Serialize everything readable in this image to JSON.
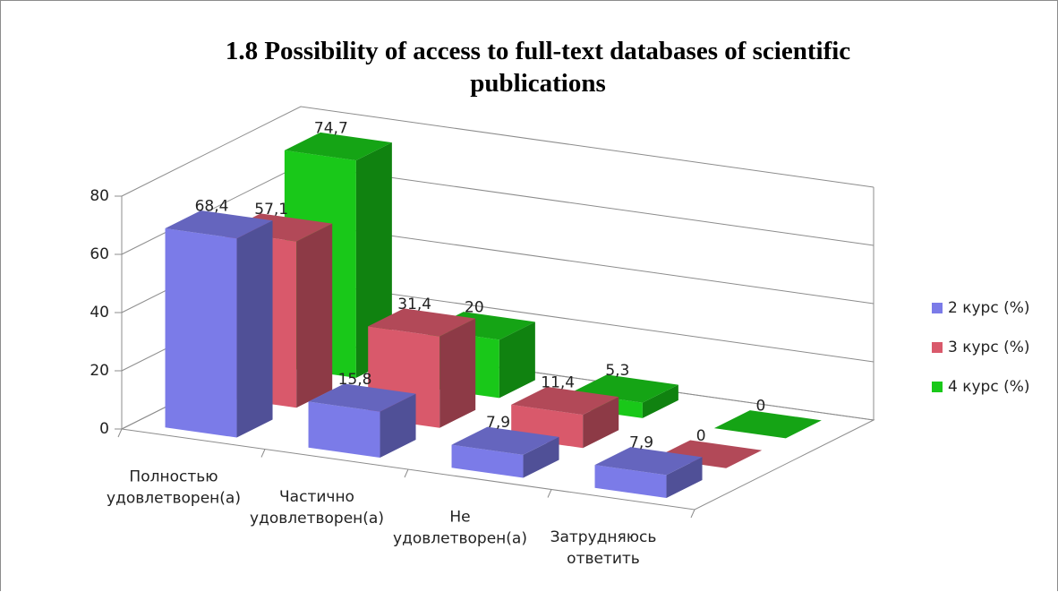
{
  "chart_data": {
    "type": "bar3d",
    "title": "1.8 Possibility of access to full-text databases of scientific publications",
    "categories": [
      "Полностью удовлетворен(а)",
      "Частично удовлетворен(а)",
      "Не удовлетворен(а)",
      "Затрудняюсь ответить"
    ],
    "series": [
      {
        "name": "2 курс (%)",
        "color": "#7b7be8",
        "values": [
          68.4,
          15.8,
          7.9,
          7.9
        ],
        "value_labels": [
          "68,4",
          "15,8",
          "7,9",
          "7,9"
        ]
      },
      {
        "name": "3 курс (%)",
        "color": "#d9596b",
        "values": [
          57.1,
          31.4,
          11.4,
          0
        ],
        "value_labels": [
          "57,1",
          "31,4",
          "11,4",
          "0"
        ]
      },
      {
        "name": "4 курс (%)",
        "color": "#19c819",
        "values": [
          74.7,
          20,
          5.3,
          0
        ],
        "value_labels": [
          "74,7",
          "20",
          "5,3",
          "0"
        ]
      }
    ],
    "ylim": [
      0,
      80
    ],
    "yticks": [
      0,
      20,
      40,
      60,
      80
    ],
    "grid": true,
    "legend": "right"
  }
}
